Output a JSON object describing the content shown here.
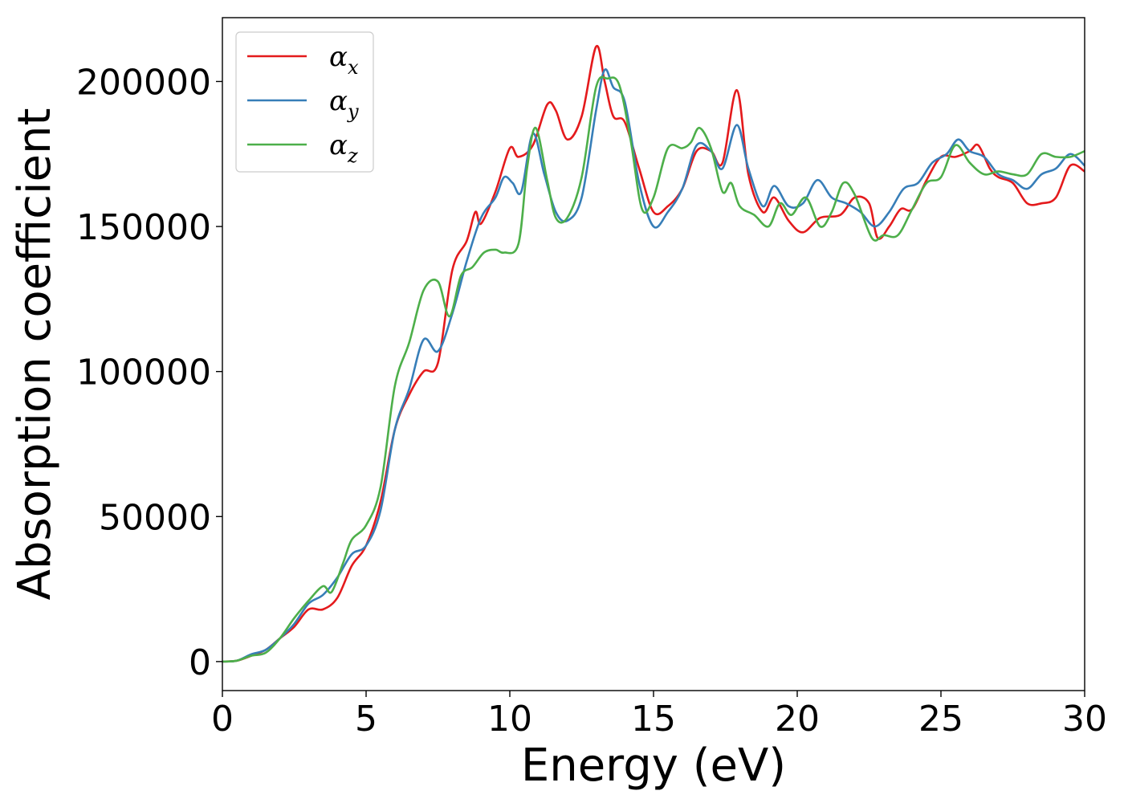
{
  "chart_data": {
    "type": "line",
    "title": "",
    "xlabel": "Energy (eV)",
    "ylabel": "Absorption coefficient",
    "xlim": [
      0,
      30
    ],
    "ylim": [
      -10000,
      222000
    ],
    "x_ticks": [
      0,
      5,
      10,
      15,
      20,
      25,
      30
    ],
    "y_ticks": [
      0,
      50000,
      100000,
      150000,
      200000
    ],
    "grid": false,
    "legend_position": "top-left",
    "series": [
      {
        "name": "α",
        "name_subscript": "x",
        "color": "#e41a1c",
        "points": [
          [
            0,
            0
          ],
          [
            0.5,
            300
          ],
          [
            1,
            2000
          ],
          [
            1.5,
            4000
          ],
          [
            2,
            8000
          ],
          [
            2.5,
            12000
          ],
          [
            3,
            18000
          ],
          [
            3.5,
            18000
          ],
          [
            4,
            22000
          ],
          [
            4.5,
            33000
          ],
          [
            5,
            40000
          ],
          [
            5.5,
            55000
          ],
          [
            6,
            80000
          ],
          [
            6.5,
            92000
          ],
          [
            7,
            100000
          ],
          [
            7.5,
            103000
          ],
          [
            8,
            135000
          ],
          [
            8.5,
            145000
          ],
          [
            8.8,
            155000
          ],
          [
            9,
            151000
          ],
          [
            9.5,
            162000
          ],
          [
            10,
            177000
          ],
          [
            10.3,
            174000
          ],
          [
            10.8,
            178000
          ],
          [
            11.3,
            192000
          ],
          [
            11.6,
            190000
          ],
          [
            12,
            180000
          ],
          [
            12.5,
            188000
          ],
          [
            13,
            212000
          ],
          [
            13.3,
            200000
          ],
          [
            13.6,
            188000
          ],
          [
            14,
            186000
          ],
          [
            14.5,
            170000
          ],
          [
            15,
            155000
          ],
          [
            15.5,
            157000
          ],
          [
            16,
            163000
          ],
          [
            16.5,
            176000
          ],
          [
            17,
            176000
          ],
          [
            17.4,
            172000
          ],
          [
            17.9,
            197000
          ],
          [
            18.3,
            168000
          ],
          [
            18.8,
            155000
          ],
          [
            19.2,
            160000
          ],
          [
            19.7,
            152000
          ],
          [
            20.2,
            148000
          ],
          [
            20.8,
            153000
          ],
          [
            21.5,
            154000
          ],
          [
            22,
            160000
          ],
          [
            22.5,
            158000
          ],
          [
            22.8,
            146000
          ],
          [
            23.2,
            150000
          ],
          [
            23.6,
            156000
          ],
          [
            24,
            156000
          ],
          [
            24.5,
            166000
          ],
          [
            25,
            174000
          ],
          [
            25.5,
            174000
          ],
          [
            26,
            176000
          ],
          [
            26.3,
            178000
          ],
          [
            26.7,
            170000
          ],
          [
            27,
            167000
          ],
          [
            27.5,
            165000
          ],
          [
            28,
            158000
          ],
          [
            28.5,
            158000
          ],
          [
            29,
            160000
          ],
          [
            29.5,
            171000
          ],
          [
            30,
            169000
          ]
        ]
      },
      {
        "name": "α",
        "name_subscript": "y",
        "color": "#377eb8",
        "points": [
          [
            0,
            0
          ],
          [
            0.5,
            300
          ],
          [
            1,
            2500
          ],
          [
            1.5,
            4000
          ],
          [
            2,
            8000
          ],
          [
            2.5,
            13000
          ],
          [
            3,
            20000
          ],
          [
            3.5,
            23000
          ],
          [
            4,
            29000
          ],
          [
            4.5,
            37000
          ],
          [
            5,
            40000
          ],
          [
            5.5,
            52000
          ],
          [
            6,
            80000
          ],
          [
            6.5,
            94000
          ],
          [
            7,
            111000
          ],
          [
            7.5,
            107000
          ],
          [
            8,
            120000
          ],
          [
            8.5,
            138000
          ],
          [
            9,
            153000
          ],
          [
            9.5,
            160000
          ],
          [
            9.8,
            167000
          ],
          [
            10.1,
            165000
          ],
          [
            10.4,
            162000
          ],
          [
            10.8,
            182000
          ],
          [
            11.2,
            168000
          ],
          [
            11.6,
            155000
          ],
          [
            12,
            152000
          ],
          [
            12.5,
            160000
          ],
          [
            13,
            190000
          ],
          [
            13.3,
            204000
          ],
          [
            13.6,
            198000
          ],
          [
            14,
            193000
          ],
          [
            14.5,
            165000
          ],
          [
            15,
            150000
          ],
          [
            15.5,
            155000
          ],
          [
            16,
            163000
          ],
          [
            16.5,
            178000
          ],
          [
            17,
            176000
          ],
          [
            17.4,
            170000
          ],
          [
            17.9,
            185000
          ],
          [
            18.3,
            170000
          ],
          [
            18.8,
            157000
          ],
          [
            19.2,
            164000
          ],
          [
            19.7,
            157000
          ],
          [
            20.2,
            158000
          ],
          [
            20.7,
            166000
          ],
          [
            21.2,
            160000
          ],
          [
            21.7,
            158000
          ],
          [
            22.2,
            155000
          ],
          [
            22.7,
            150000
          ],
          [
            23.2,
            155000
          ],
          [
            23.7,
            163000
          ],
          [
            24.2,
            165000
          ],
          [
            24.7,
            172000
          ],
          [
            25.2,
            175000
          ],
          [
            25.6,
            180000
          ],
          [
            26,
            176000
          ],
          [
            26.5,
            174000
          ],
          [
            27,
            168000
          ],
          [
            27.5,
            166000
          ],
          [
            28,
            163000
          ],
          [
            28.5,
            168000
          ],
          [
            29,
            170000
          ],
          [
            29.5,
            175000
          ],
          [
            30,
            171000
          ]
        ]
      },
      {
        "name": "α",
        "name_subscript": "z",
        "color": "#4daf4a",
        "points": [
          [
            0,
            0
          ],
          [
            0.5,
            300
          ],
          [
            1,
            2000
          ],
          [
            1.5,
            3000
          ],
          [
            2,
            8000
          ],
          [
            2.5,
            15000
          ],
          [
            3,
            21000
          ],
          [
            3.5,
            26000
          ],
          [
            3.8,
            24000
          ],
          [
            4.2,
            34000
          ],
          [
            4.5,
            42000
          ],
          [
            5,
            47000
          ],
          [
            5.5,
            60000
          ],
          [
            6,
            95000
          ],
          [
            6.5,
            110000
          ],
          [
            7,
            128000
          ],
          [
            7.5,
            131000
          ],
          [
            7.9,
            119000
          ],
          [
            8.3,
            133000
          ],
          [
            8.7,
            136000
          ],
          [
            9.1,
            141000
          ],
          [
            9.5,
            142000
          ],
          [
            9.8,
            141000
          ],
          [
            10.3,
            144000
          ],
          [
            10.6,
            170000
          ],
          [
            10.9,
            184000
          ],
          [
            11.3,
            166000
          ],
          [
            11.6,
            153000
          ],
          [
            12,
            153000
          ],
          [
            12.5,
            167000
          ],
          [
            13,
            198000
          ],
          [
            13.4,
            201000
          ],
          [
            13.8,
            199000
          ],
          [
            14.2,
            180000
          ],
          [
            14.6,
            156000
          ],
          [
            15,
            160000
          ],
          [
            15.5,
            177000
          ],
          [
            16,
            177000
          ],
          [
            16.3,
            179000
          ],
          [
            16.6,
            184000
          ],
          [
            17,
            177000
          ],
          [
            17.4,
            162000
          ],
          [
            17.7,
            165000
          ],
          [
            18,
            157000
          ],
          [
            18.5,
            154000
          ],
          [
            19,
            150000
          ],
          [
            19.4,
            158000
          ],
          [
            19.8,
            154000
          ],
          [
            20.3,
            160000
          ],
          [
            20.8,
            150000
          ],
          [
            21.2,
            155000
          ],
          [
            21.6,
            165000
          ],
          [
            22,
            161000
          ],
          [
            22.6,
            146000
          ],
          [
            23,
            147000
          ],
          [
            23.5,
            147000
          ],
          [
            24,
            156000
          ],
          [
            24.5,
            165000
          ],
          [
            25,
            167000
          ],
          [
            25.5,
            178000
          ],
          [
            26,
            172000
          ],
          [
            26.5,
            168000
          ],
          [
            27,
            169000
          ],
          [
            27.5,
            168000
          ],
          [
            28,
            168000
          ],
          [
            28.5,
            175000
          ],
          [
            29,
            174000
          ],
          [
            29.5,
            174000
          ],
          [
            30,
            176000
          ]
        ]
      }
    ]
  }
}
